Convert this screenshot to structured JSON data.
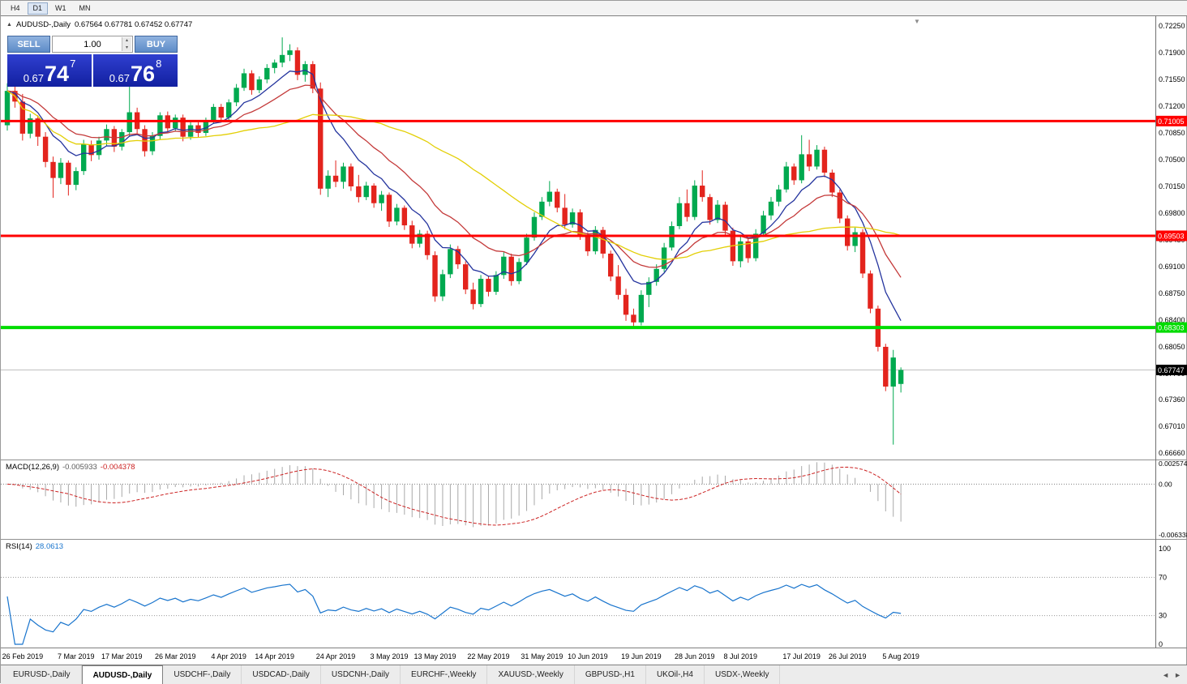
{
  "toolbar": {
    "periods": [
      {
        "label": "H4",
        "active": false
      },
      {
        "label": "D1",
        "active": true
      },
      {
        "label": "W1",
        "active": false
      },
      {
        "label": "MN",
        "active": false
      }
    ]
  },
  "icons": {
    "one_click_toggle": "▲",
    "spin_up": "▴",
    "spin_down": "▾",
    "shift_marker": "▼",
    "tab_scroll_left": "◄",
    "tab_scroll_right": "►"
  },
  "colors": {
    "bull": "#00A94F",
    "bear": "#E3241D",
    "ma_fast": "#24349E",
    "ma_mid": "#C43A3A",
    "ma_slow": "#E3CF06",
    "level_red": "#FF0000",
    "level_green": "#00DC00",
    "current_price_box": "#000000",
    "macd_hist": "#A8A8A8",
    "macd_signal": "#CC2222",
    "rsi_line": "#1874CD"
  },
  "chart": {
    "title_symbol": "AUDUSD-,Daily",
    "ohlc_text": "0.67564 0.67781 0.67452 0.67747",
    "trade_panel": {
      "sell_label": "SELL",
      "buy_label": "BUY",
      "volume": "1.00",
      "bid_big": "0.67",
      "bid_pips": "74",
      "bid_pt": "7",
      "ask_big": "0.67",
      "ask_pips": "76",
      "ask_pt": "8"
    },
    "levels": [
      {
        "value": 0.71005,
        "label": "0.71005",
        "color": "#FF0000",
        "width": 3
      },
      {
        "value": 0.69503,
        "label": "0.69503",
        "color": "#FF0000",
        "width": 3
      },
      {
        "value": 0.68303,
        "label": "0.68303",
        "color": "#00DC00",
        "width": 4
      }
    ],
    "current_price": {
      "value": 0.67747,
      "label": "0.67747"
    },
    "price_ticks": [
      "0.72250",
      "0.71900",
      "0.71550",
      "0.71200",
      "0.70850",
      "0.70500",
      "0.70150",
      "0.69800",
      "0.69450",
      "0.69100",
      "0.68750",
      "0.68400",
      "0.68050",
      "0.67700",
      "0.67360",
      "0.67010",
      "0.66660"
    ]
  },
  "macd": {
    "label": "MACD(12,26,9)",
    "value_main": "-0.005933",
    "value_signal": "-0.004378",
    "ticks": [
      "0.002574",
      "0.00",
      "-0.006338"
    ],
    "tick_values": [
      0.002574,
      0,
      -0.006338
    ]
  },
  "rsi": {
    "label": "RSI(14)",
    "value": "28.0613",
    "ticks": [
      "100",
      "70",
      "30",
      "0"
    ],
    "tick_values": [
      100,
      70,
      30,
      0
    ]
  },
  "dates": [
    "26 Feb 2019",
    "7 Mar 2019",
    "17 Mar 2019",
    "26 Mar 2019",
    "4 Apr 2019",
    "14 Apr 2019",
    "24 Apr 2019",
    "3 May 2019",
    "13 May 2019",
    "22 May 2019",
    "31 May 2019",
    "10 Jun 2019",
    "19 Jun 2019",
    "28 Jun 2019",
    "8 Jul 2019",
    "17 Jul 2019",
    "26 Jul 2019",
    "5 Aug 2019"
  ],
  "tabs": [
    {
      "label": "EURUSD-,Daily",
      "active": false
    },
    {
      "label": "AUDUSD-,Daily",
      "active": true
    },
    {
      "label": "USDCHF-,Daily",
      "active": false
    },
    {
      "label": "USDCAD-,Daily",
      "active": false
    },
    {
      "label": "USDCNH-,Daily",
      "active": false
    },
    {
      "label": "EURCHF-,Weekly",
      "active": false
    },
    {
      "label": "XAUUSD-,Weekly",
      "active": false
    },
    {
      "label": "GBPUSD-,H1",
      "active": false
    },
    {
      "label": "UKOil-,H4",
      "active": false
    },
    {
      "label": "USDX-,Weekly",
      "active": false
    }
  ],
  "chart_data": {
    "type": "candlestick",
    "symbol": "AUDUSD-",
    "timeframe": "Daily",
    "price_range_top": 0.7238,
    "price_range_bottom": 0.6659,
    "moving_averages": [
      {
        "type": "ema",
        "period": 8,
        "color": "#24349E"
      },
      {
        "type": "ema",
        "period": 17,
        "color": "#C43A3A"
      },
      {
        "type": "sma",
        "period": 34,
        "color": "#E3CF06"
      }
    ],
    "date_tick_indices": [
      2,
      9,
      15,
      22,
      29,
      35,
      43,
      50,
      56,
      63,
      70,
      76,
      83,
      90,
      96,
      104,
      110,
      117
    ],
    "candles": [
      [
        0.7095,
        0.715,
        0.7088,
        0.714
      ],
      [
        0.714,
        0.7148,
        0.7118,
        0.7126
      ],
      [
        0.7126,
        0.7136,
        0.7075,
        0.7084
      ],
      [
        0.7084,
        0.711,
        0.7078,
        0.7104
      ],
      [
        0.7104,
        0.7108,
        0.7068,
        0.708
      ],
      [
        0.708,
        0.7086,
        0.704,
        0.7047
      ],
      [
        0.7047,
        0.7054,
        0.7,
        0.7026
      ],
      [
        0.7026,
        0.7052,
        0.7018,
        0.7046
      ],
      [
        0.7046,
        0.7049,
        0.7003,
        0.7017
      ],
      [
        0.7017,
        0.704,
        0.701,
        0.7035
      ],
      [
        0.7035,
        0.7076,
        0.703,
        0.707
      ],
      [
        0.707,
        0.7075,
        0.7048,
        0.7056
      ],
      [
        0.7056,
        0.708,
        0.705,
        0.7075
      ],
      [
        0.7075,
        0.7096,
        0.7068,
        0.709
      ],
      [
        0.709,
        0.7094,
        0.706,
        0.7067
      ],
      [
        0.7067,
        0.709,
        0.7062,
        0.7086
      ],
      [
        0.7086,
        0.715,
        0.708,
        0.7112
      ],
      [
        0.7112,
        0.7118,
        0.7084,
        0.709
      ],
      [
        0.709,
        0.7095,
        0.7054,
        0.7061
      ],
      [
        0.7061,
        0.7086,
        0.7056,
        0.7081
      ],
      [
        0.7081,
        0.7112,
        0.7076,
        0.7108
      ],
      [
        0.7108,
        0.7113,
        0.7085,
        0.7091
      ],
      [
        0.7091,
        0.7109,
        0.7087,
        0.7105
      ],
      [
        0.7105,
        0.7109,
        0.7074,
        0.708
      ],
      [
        0.708,
        0.7099,
        0.7076,
        0.7095
      ],
      [
        0.7095,
        0.7099,
        0.7079,
        0.7085
      ],
      [
        0.7085,
        0.7105,
        0.7081,
        0.7101
      ],
      [
        0.7101,
        0.7123,
        0.7097,
        0.7119
      ],
      [
        0.7119,
        0.7123,
        0.7099,
        0.7105
      ],
      [
        0.7105,
        0.7129,
        0.7101,
        0.7125
      ],
      [
        0.7125,
        0.7149,
        0.712,
        0.7144
      ],
      [
        0.7144,
        0.7169,
        0.714,
        0.7163
      ],
      [
        0.7163,
        0.7167,
        0.7135,
        0.7141
      ],
      [
        0.7141,
        0.7159,
        0.7137,
        0.7155
      ],
      [
        0.7155,
        0.7175,
        0.715,
        0.717
      ],
      [
        0.717,
        0.7181,
        0.7163,
        0.7177
      ],
      [
        0.7177,
        0.721,
        0.7171,
        0.7187
      ],
      [
        0.7187,
        0.7201,
        0.7179,
        0.7193
      ],
      [
        0.7193,
        0.7197,
        0.7154,
        0.7161
      ],
      [
        0.7161,
        0.7179,
        0.7152,
        0.7175
      ],
      [
        0.7175,
        0.7179,
        0.7137,
        0.7143
      ],
      [
        0.7143,
        0.7151,
        0.7004,
        0.7012
      ],
      [
        0.7012,
        0.7036,
        0.7001,
        0.7029
      ],
      [
        0.7029,
        0.7049,
        0.7014,
        0.7021
      ],
      [
        0.7021,
        0.7046,
        0.7012,
        0.7041
      ],
      [
        0.7041,
        0.7045,
        0.7009,
        0.7015
      ],
      [
        0.7015,
        0.703,
        0.6994,
        0.7001
      ],
      [
        0.7001,
        0.7021,
        0.6997,
        0.7016
      ],
      [
        0.7016,
        0.7019,
        0.6987,
        0.6993
      ],
      [
        0.6993,
        0.7009,
        0.6983,
        0.7004
      ],
      [
        0.7004,
        0.7007,
        0.6962,
        0.6969
      ],
      [
        0.6969,
        0.6992,
        0.6964,
        0.6987
      ],
      [
        0.6987,
        0.699,
        0.6958,
        0.6964
      ],
      [
        0.6964,
        0.697,
        0.6934,
        0.694
      ],
      [
        0.694,
        0.6958,
        0.6935,
        0.6953
      ],
      [
        0.6953,
        0.6957,
        0.6919,
        0.6925
      ],
      [
        0.6925,
        0.693,
        0.6864,
        0.6871
      ],
      [
        0.6871,
        0.6906,
        0.6865,
        0.69
      ],
      [
        0.69,
        0.6939,
        0.6895,
        0.6933
      ],
      [
        0.6933,
        0.6937,
        0.6907,
        0.6913
      ],
      [
        0.6913,
        0.6917,
        0.6874,
        0.688
      ],
      [
        0.688,
        0.6889,
        0.6854,
        0.6861
      ],
      [
        0.6861,
        0.6899,
        0.6857,
        0.6894
      ],
      [
        0.6894,
        0.6898,
        0.6871,
        0.6877
      ],
      [
        0.6877,
        0.6904,
        0.6873,
        0.6899
      ],
      [
        0.6899,
        0.6929,
        0.6894,
        0.6923
      ],
      [
        0.6923,
        0.6927,
        0.6885,
        0.6891
      ],
      [
        0.6891,
        0.6921,
        0.6887,
        0.6916
      ],
      [
        0.6916,
        0.6953,
        0.6912,
        0.6948
      ],
      [
        0.6948,
        0.6981,
        0.6944,
        0.6975
      ],
      [
        0.6975,
        0.7001,
        0.6971,
        0.6995
      ],
      [
        0.6995,
        0.7022,
        0.6989,
        0.7008
      ],
      [
        0.7008,
        0.7012,
        0.6981,
        0.6987
      ],
      [
        0.6987,
        0.7005,
        0.6959,
        0.6965
      ],
      [
        0.6965,
        0.6986,
        0.6961,
        0.6981
      ],
      [
        0.6981,
        0.6985,
        0.6945,
        0.6951
      ],
      [
        0.6951,
        0.6955,
        0.6924,
        0.693
      ],
      [
        0.693,
        0.6963,
        0.6926,
        0.6958
      ],
      [
        0.6958,
        0.6962,
        0.6921,
        0.6927
      ],
      [
        0.6927,
        0.6931,
        0.6891,
        0.6897
      ],
      [
        0.6897,
        0.6912,
        0.6867,
        0.6873
      ],
      [
        0.6873,
        0.6881,
        0.6839,
        0.6847
      ],
      [
        0.6847,
        0.6855,
        0.6831,
        0.6837
      ],
      [
        0.6837,
        0.6879,
        0.6833,
        0.6873
      ],
      [
        0.6873,
        0.6896,
        0.6857,
        0.689
      ],
      [
        0.689,
        0.6913,
        0.6885,
        0.6907
      ],
      [
        0.6907,
        0.6941,
        0.6903,
        0.6935
      ],
      [
        0.6935,
        0.6969,
        0.6931,
        0.6963
      ],
      [
        0.6963,
        0.7001,
        0.6959,
        0.6993
      ],
      [
        0.6993,
        0.7011,
        0.6969,
        0.6975
      ],
      [
        0.6975,
        0.7023,
        0.6971,
        0.7016
      ],
      [
        0.7016,
        0.7036,
        0.6995,
        0.7001
      ],
      [
        0.7001,
        0.7005,
        0.6965,
        0.6971
      ],
      [
        0.6971,
        0.6997,
        0.6967,
        0.6991
      ],
      [
        0.6991,
        0.6995,
        0.6951,
        0.6957
      ],
      [
        0.6957,
        0.6961,
        0.6911,
        0.6917
      ],
      [
        0.6917,
        0.6949,
        0.6909,
        0.6943
      ],
      [
        0.6943,
        0.6947,
        0.6915,
        0.6921
      ],
      [
        0.6921,
        0.6959,
        0.6917,
        0.6953
      ],
      [
        0.6953,
        0.6983,
        0.6949,
        0.6977
      ],
      [
        0.6977,
        0.7001,
        0.6971,
        0.6995
      ],
      [
        0.6995,
        0.7017,
        0.6989,
        0.7011
      ],
      [
        0.7011,
        0.7047,
        0.7007,
        0.7041
      ],
      [
        0.7041,
        0.7045,
        0.7017,
        0.7023
      ],
      [
        0.7023,
        0.7082,
        0.7019,
        0.7057
      ],
      [
        0.7057,
        0.7076,
        0.7035,
        0.7041
      ],
      [
        0.7041,
        0.7069,
        0.7037,
        0.7063
      ],
      [
        0.7063,
        0.7067,
        0.7027,
        0.7033
      ],
      [
        0.7033,
        0.7037,
        0.7001,
        0.7007
      ],
      [
        0.7007,
        0.7011,
        0.6967,
        0.6973
      ],
      [
        0.6973,
        0.6977,
        0.6931,
        0.6937
      ],
      [
        0.6937,
        0.6961,
        0.6929,
        0.6955
      ],
      [
        0.6955,
        0.6959,
        0.6895,
        0.6901
      ],
      [
        0.6901,
        0.6905,
        0.6849,
        0.6855
      ],
      [
        0.6855,
        0.6859,
        0.6799,
        0.6805
      ],
      [
        0.6805,
        0.6809,
        0.6747,
        0.6753
      ],
      [
        0.6753,
        0.6801,
        0.6677,
        0.6791
      ],
      [
        0.67564,
        0.67781,
        0.67452,
        0.67747
      ]
    ]
  }
}
